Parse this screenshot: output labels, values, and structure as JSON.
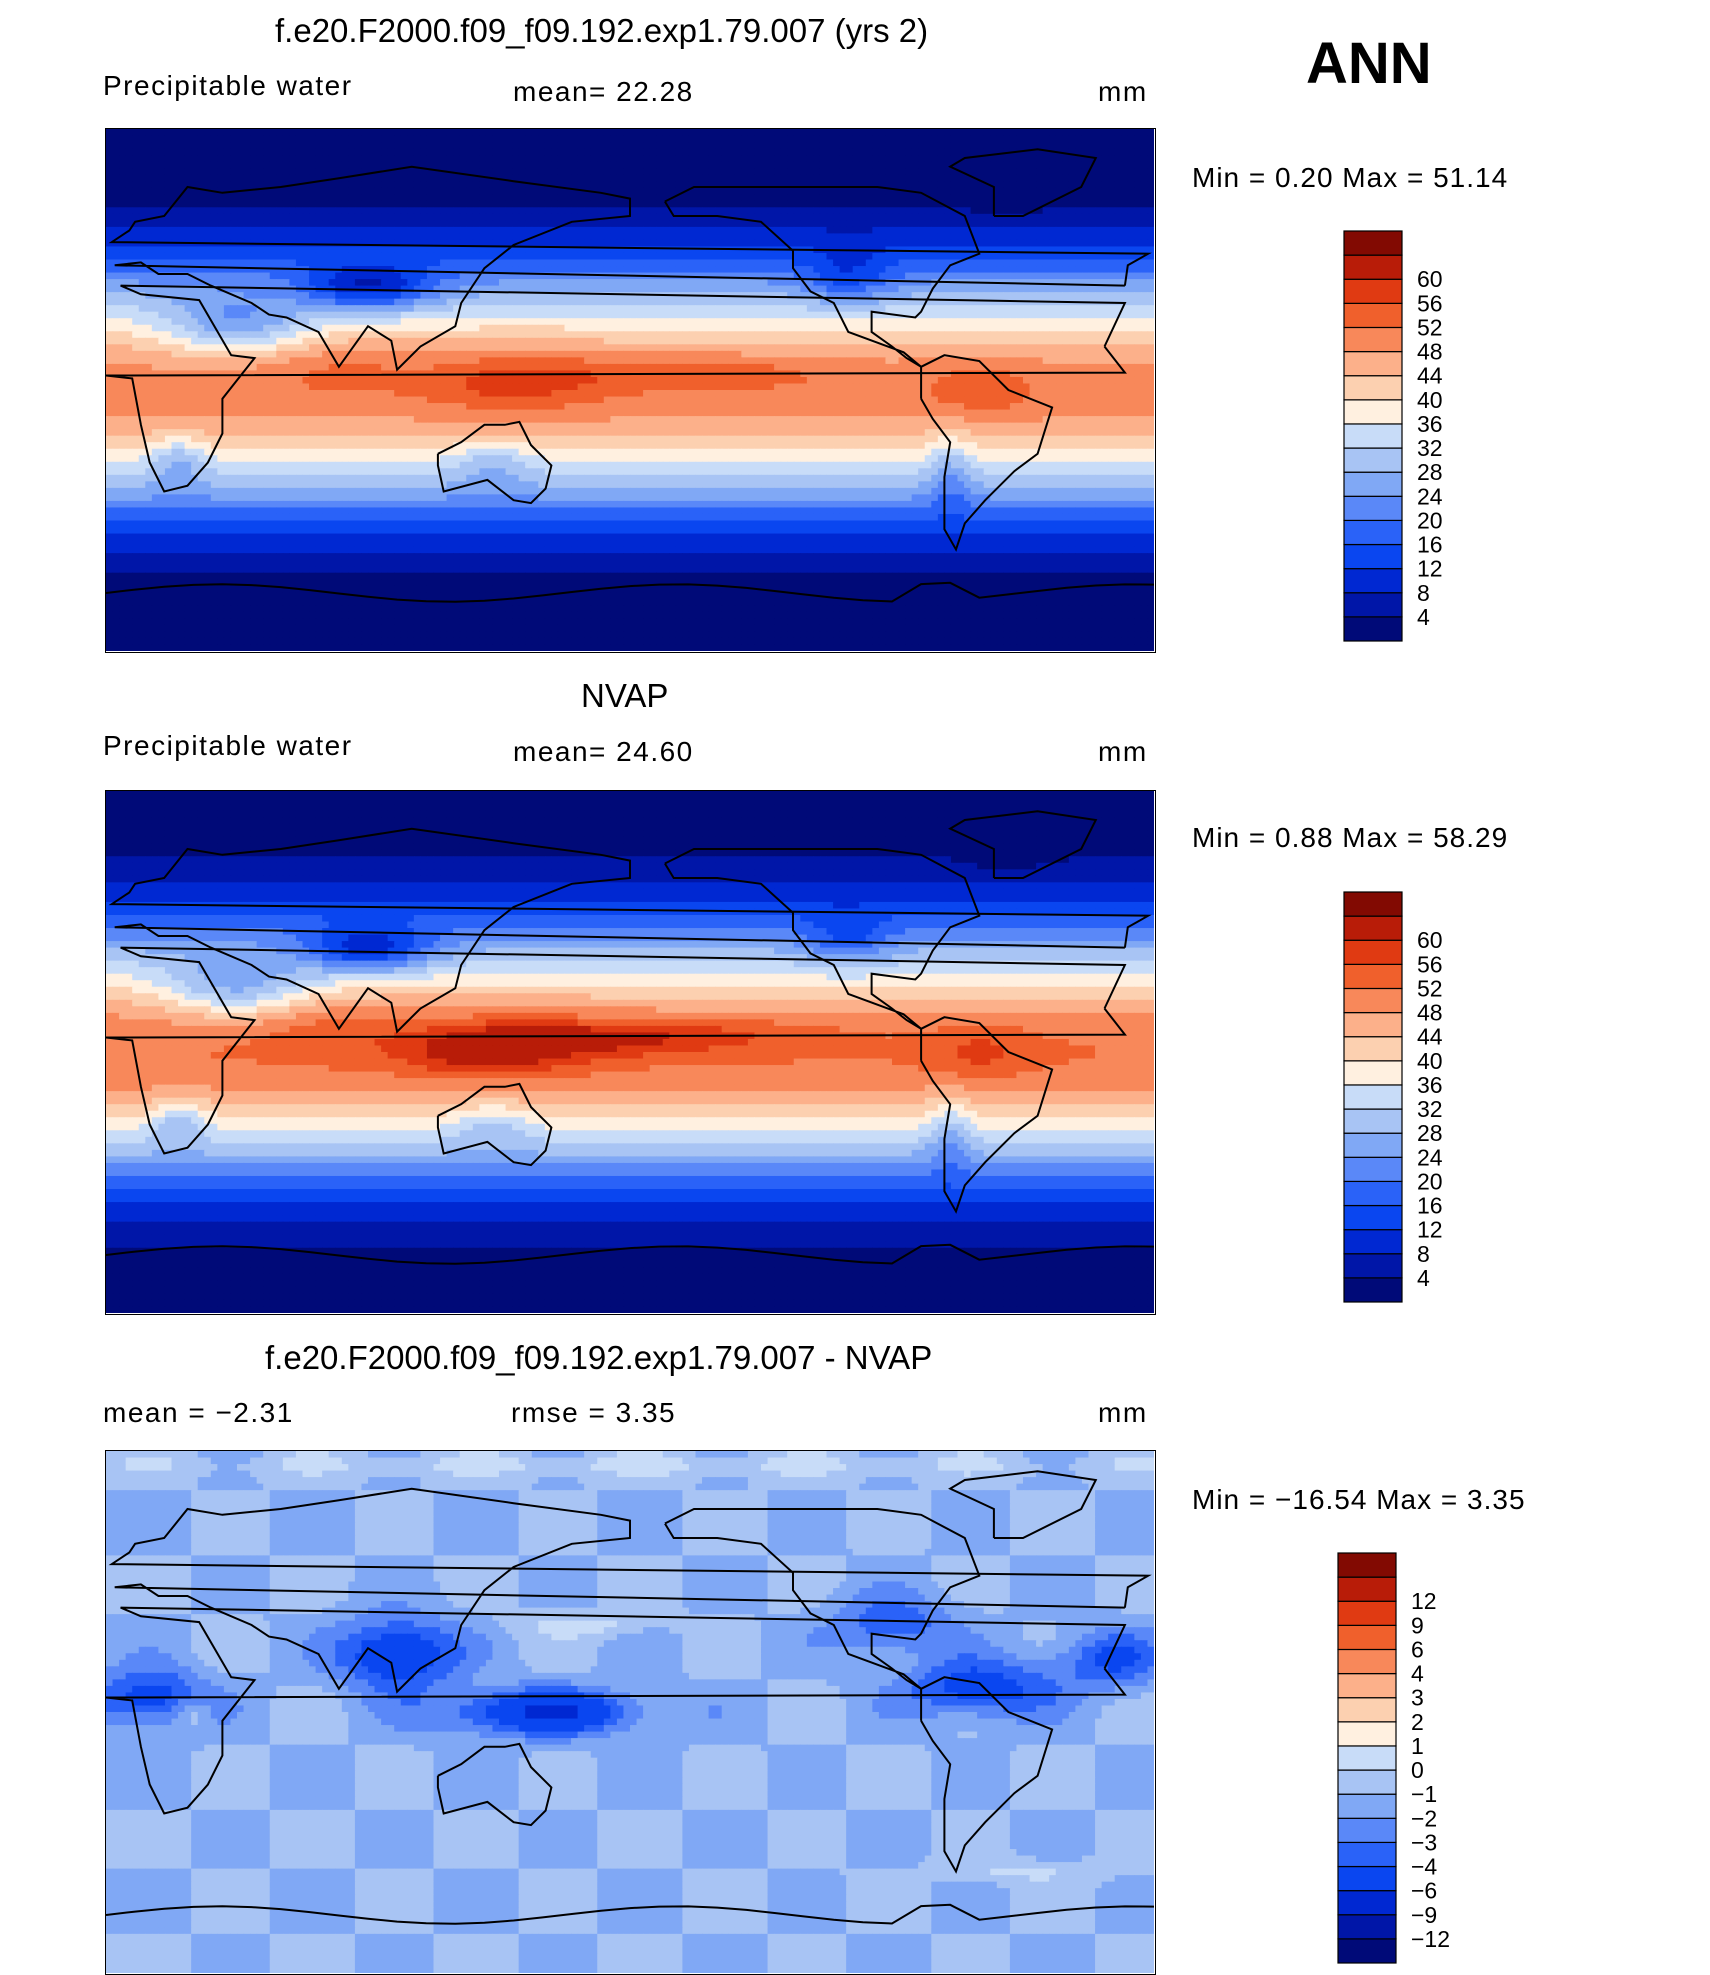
{
  "season": "ANN",
  "panels": [
    {
      "title": "f.e20.F2000.f09_f09.192.exp1.79.007 (yrs 2)",
      "left_label": "Precipitable  water",
      "mid_label": "mean=   22.28",
      "unit": "mm",
      "minmax": "Min  =     0.20  Max  =     51.14",
      "field": "model",
      "colorbar": {
        "colors": [
          "#000a78",
          "#0016a8",
          "#0028d2",
          "#0a46f0",
          "#2a62f8",
          "#5a88f8",
          "#80a8f5",
          "#a8c4f4",
          "#c8dcf8",
          "#fff0e0",
          "#fcd0b0",
          "#fcb08a",
          "#f8885a",
          "#f0602c",
          "#e03a12",
          "#b81c08",
          "#820a02"
        ],
        "labels": [
          "4",
          "8",
          "12",
          "16",
          "20",
          "24",
          "28",
          "32",
          "36",
          "40",
          "44",
          "48",
          "52",
          "56",
          "60"
        ]
      }
    },
    {
      "title": "NVAP",
      "left_label": "Precipitable  water",
      "mid_label": "mean=   24.60",
      "unit": "mm",
      "minmax": "Min  =     0.88  Max  =     58.29",
      "field": "obs",
      "colorbar": {
        "colors": [
          "#000a78",
          "#0016a8",
          "#0028d2",
          "#0a46f0",
          "#2a62f8",
          "#5a88f8",
          "#80a8f5",
          "#a8c4f4",
          "#c8dcf8",
          "#fff0e0",
          "#fcd0b0",
          "#fcb08a",
          "#f8885a",
          "#f0602c",
          "#e03a12",
          "#b81c08",
          "#820a02"
        ],
        "labels": [
          "4",
          "8",
          "12",
          "16",
          "20",
          "24",
          "28",
          "32",
          "36",
          "40",
          "44",
          "48",
          "52",
          "56",
          "60"
        ]
      }
    },
    {
      "title": "f.e20.F2000.f09_f09.192.exp1.79.007 - NVAP",
      "left_label": "mean  =    −2.31",
      "mid_label": "rmse  =     3.35",
      "unit": "mm",
      "minmax": "Min  = −16.54  Max  =      3.35",
      "field": "diff",
      "colorbar": {
        "colors": [
          "#000a78",
          "#0016a8",
          "#0028d2",
          "#0a46f0",
          "#2a62f8",
          "#5a88f8",
          "#80a8f5",
          "#a8c4f4",
          "#c8dcf8",
          "#fff0e0",
          "#fcd0b0",
          "#fcb08a",
          "#f8885a",
          "#f0602c",
          "#e03a12",
          "#b81c08",
          "#820a02"
        ],
        "labels": [
          "−12",
          "−9",
          "−6",
          "−4",
          "−3",
          "−2",
          "−1",
          "0",
          "1",
          "2",
          "3",
          "4",
          "6",
          "9",
          "12"
        ]
      }
    }
  ],
  "chart_data": [
    {
      "type": "heatmap",
      "title": "f.e20.F2000.f09_f09.192.exp1.79.007 (yrs 2)",
      "variable": "Precipitable  water",
      "unit": "mm",
      "mean": 22.28,
      "min": 0.2,
      "max": 51.14,
      "contour_levels": [
        4,
        8,
        12,
        16,
        20,
        24,
        28,
        32,
        36,
        40,
        44,
        48,
        52,
        56,
        60
      ]
    },
    {
      "type": "heatmap",
      "title": "NVAP",
      "variable": "Precipitable  water",
      "unit": "mm",
      "mean": 24.6,
      "min": 0.88,
      "max": 58.29,
      "contour_levels": [
        4,
        8,
        12,
        16,
        20,
        24,
        28,
        32,
        36,
        40,
        44,
        48,
        52,
        56,
        60
      ]
    },
    {
      "type": "heatmap",
      "title": "f.e20.F2000.f09_f09.192.exp1.79.007 - NVAP",
      "unit": "mm",
      "mean": -2.31,
      "rmse": 3.35,
      "min": -16.54,
      "max": 3.35,
      "contour_levels": [
        -12,
        -9,
        -6,
        -4,
        -3,
        -2,
        -1,
        0,
        1,
        2,
        3,
        4,
        6,
        9,
        12
      ]
    }
  ]
}
